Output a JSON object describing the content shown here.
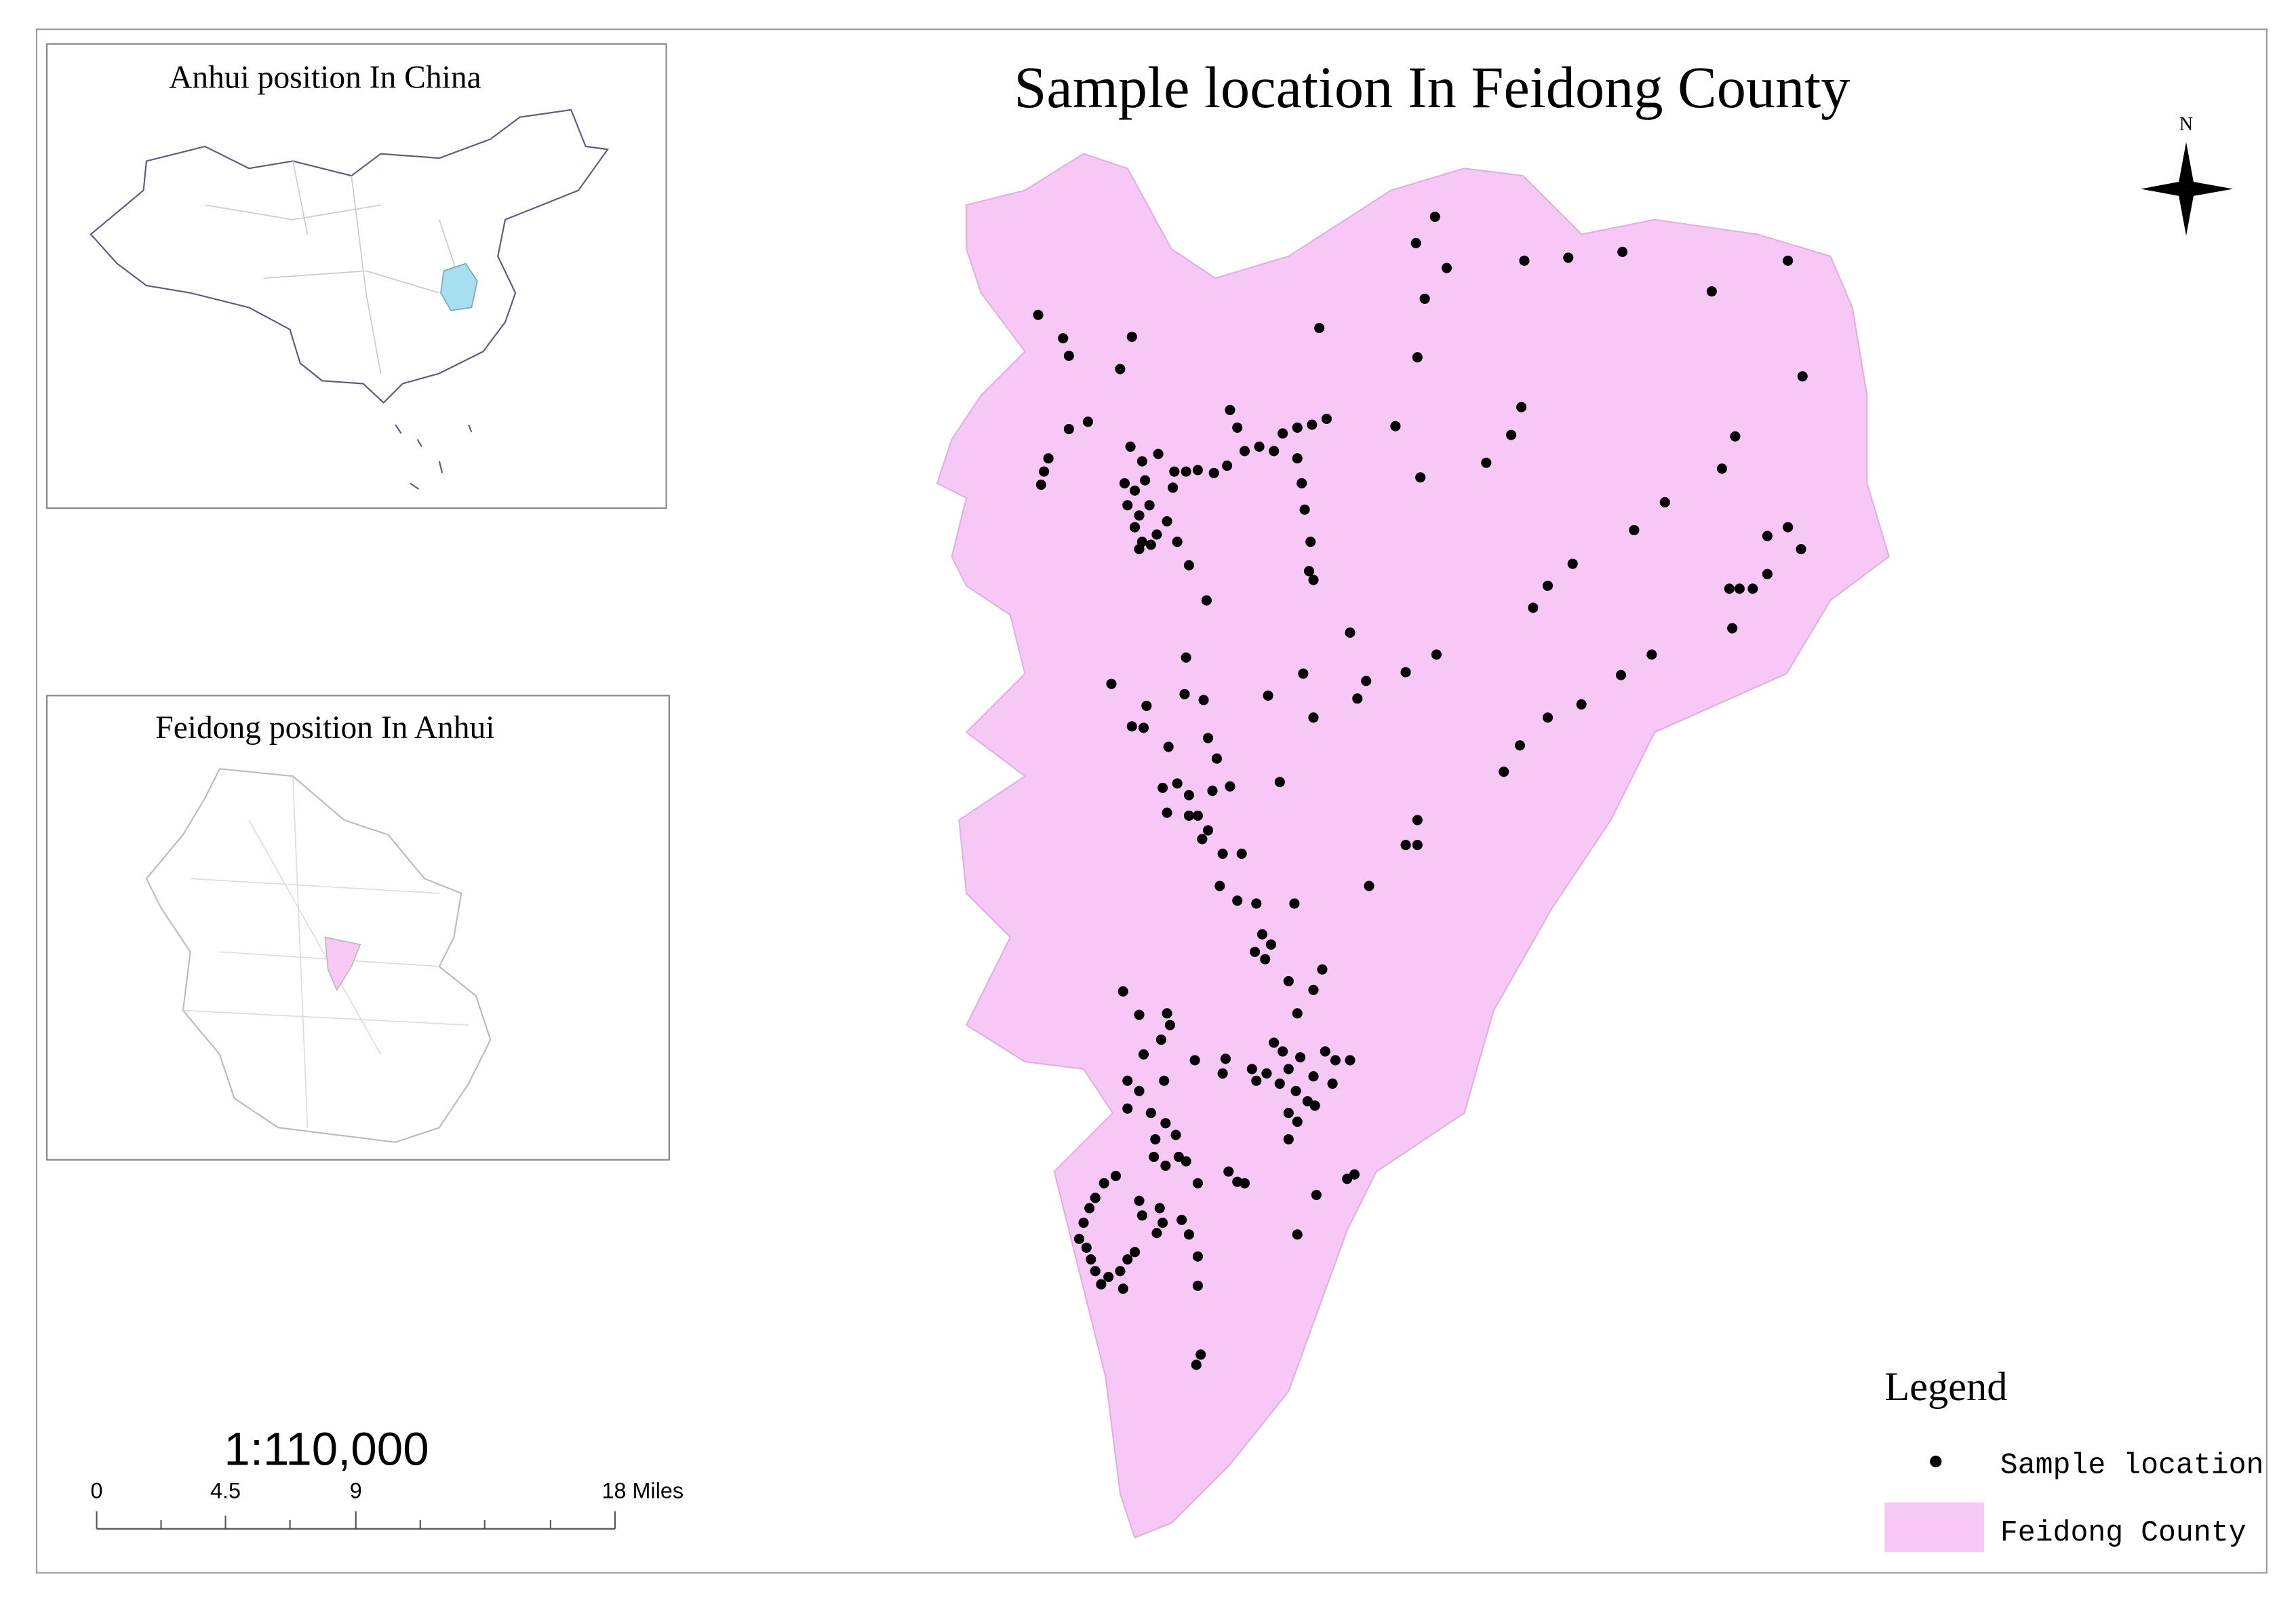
{
  "title": "Sample location In Feidong County",
  "inset_china": {
    "title": "Anhui position In China"
  },
  "inset_anhui": {
    "title": "Feidong  position In Anhui"
  },
  "scale": {
    "ratio": "1:110,000",
    "labels": [
      "0",
      "4.5",
      "9",
      "18 Miles"
    ]
  },
  "north_arrow": {
    "label": "N"
  },
  "legend": {
    "title": "Legend",
    "items": [
      "Sample location",
      "Feidong County"
    ]
  }
}
